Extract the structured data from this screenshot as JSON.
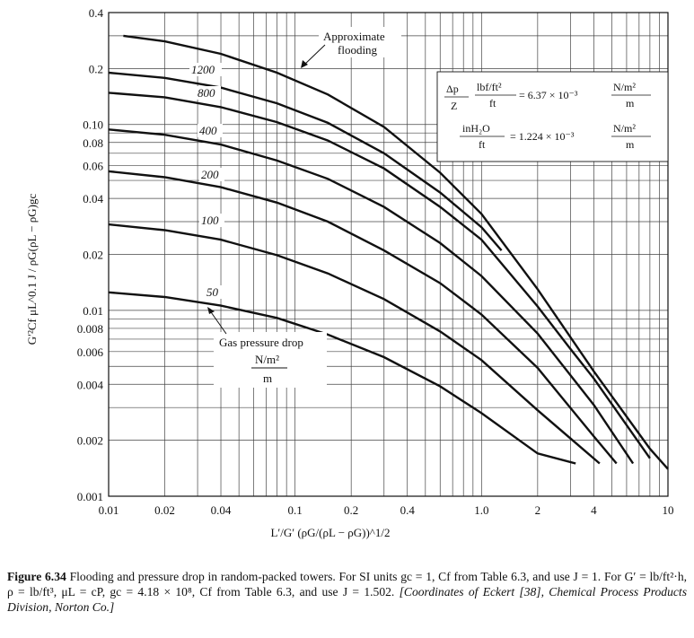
{
  "chart_data": {
    "type": "line",
    "x_scale": "log",
    "y_scale": "log",
    "xlim": [
      0.01,
      10
    ],
    "ylim": [
      0.001,
      0.4
    ],
    "x_ticks": [
      "0.01",
      "0.02",
      "0.04",
      "0.1",
      "0.2",
      "0.4",
      "1.0",
      "2",
      "4",
      "10"
    ],
    "y_ticks": [
      "0.001",
      "0.002",
      "0.004",
      "0.006",
      "0.008",
      "0.01",
      "0.02",
      "0.04",
      "0.06",
      "0.08",
      "0.10",
      "0.2",
      "0.4"
    ],
    "xlabel": "L′/G′ (ρG/(ρL − ρG))^1/2",
    "ylabel": "G′²Cf μL^0.1 J / ρG(ρL − ρG)gc",
    "grid": true,
    "series": [
      {
        "name": "Approximate flooding",
        "x": [
          0.012,
          0.02,
          0.04,
          0.08,
          0.15,
          0.3,
          0.6,
          1.0,
          2.0,
          4.0,
          8.0,
          10.0
        ],
        "y": [
          0.3,
          0.28,
          0.24,
          0.19,
          0.145,
          0.097,
          0.055,
          0.033,
          0.013,
          0.0047,
          0.0018,
          0.0014
        ]
      },
      {
        "name": "1200",
        "x": [
          0.01,
          0.02,
          0.04,
          0.08,
          0.15,
          0.3,
          0.6,
          1.0,
          1.28
        ],
        "y": [
          0.19,
          0.178,
          0.158,
          0.13,
          0.102,
          0.07,
          0.043,
          0.028,
          0.021
        ]
      },
      {
        "name": "800",
        "x": [
          0.01,
          0.02,
          0.04,
          0.08,
          0.15,
          0.3,
          0.6,
          1.0,
          2.0,
          3.0,
          4.0,
          8.0
        ],
        "y": [
          0.148,
          0.14,
          0.124,
          0.103,
          0.082,
          0.058,
          0.036,
          0.024,
          0.0105,
          0.0062,
          0.0043,
          0.0016
        ]
      },
      {
        "name": "400",
        "x": [
          0.01,
          0.02,
          0.04,
          0.08,
          0.15,
          0.3,
          0.6,
          1.0,
          2.0,
          4.0,
          6.5
        ],
        "y": [
          0.094,
          0.088,
          0.078,
          0.064,
          0.051,
          0.036,
          0.023,
          0.0153,
          0.0075,
          0.0031,
          0.0015
        ]
      },
      {
        "name": "200",
        "x": [
          0.01,
          0.02,
          0.04,
          0.08,
          0.15,
          0.3,
          0.6,
          1.0,
          2.0,
          4.0,
          5.3
        ],
        "y": [
          0.056,
          0.052,
          0.046,
          0.038,
          0.03,
          0.021,
          0.014,
          0.0095,
          0.0049,
          0.0021,
          0.0015
        ]
      },
      {
        "name": "100",
        "x": [
          0.01,
          0.02,
          0.04,
          0.08,
          0.15,
          0.3,
          0.6,
          1.0,
          2.0,
          4.3
        ],
        "y": [
          0.029,
          0.027,
          0.024,
          0.0198,
          0.0158,
          0.0115,
          0.0077,
          0.0054,
          0.0029,
          0.0015
        ]
      },
      {
        "name": "50",
        "x": [
          0.01,
          0.02,
          0.04,
          0.08,
          0.15,
          0.3,
          0.6,
          1.0,
          2.0,
          3.2
        ],
        "y": [
          0.0125,
          0.0118,
          0.0106,
          0.0091,
          0.0074,
          0.0056,
          0.0039,
          0.0028,
          0.0017,
          0.0015
        ]
      }
    ],
    "curve_labels": [
      "1200",
      "800",
      "400",
      "200",
      "100",
      "50"
    ],
    "annotations": {
      "flooding_line1": "Approximate",
      "flooding_line2": "flooding",
      "gas_pd_line1": "Gas pressure drop",
      "gas_pd_line2": "N/m²",
      "gas_pd_line3": "m"
    },
    "conversion_box": {
      "row1_dp": "Δp",
      "row1_z": "Z",
      "row1_unit_num": "lbf/ft²",
      "row1_unit_den": "ft",
      "row1_eq": "= 6.37 × 10⁻³",
      "row1_si_num": "N/m²",
      "row1_si_den": "m",
      "row2_unit_num": "inH₂O",
      "row2_unit_den": "ft",
      "row2_eq": "= 1.224 × 10⁻³",
      "row2_si_num": "N/m²",
      "row2_si_den": "m"
    }
  },
  "caption": {
    "fig": "Figure 6.34",
    "text": "Flooding and pressure drop in random-packed towers. For SI units gc = 1, Cf from Table 6.3, and use J = 1. For G′ = lb/ft²·h, ρ = lb/ft³, μL = cP, gc = 4.18 × 10⁸, Cf from Table 6.3, and use J = 1.502.",
    "citation": "[Coordinates of Eckert [38], Chemical Process Products Division, Norton Co.]"
  }
}
